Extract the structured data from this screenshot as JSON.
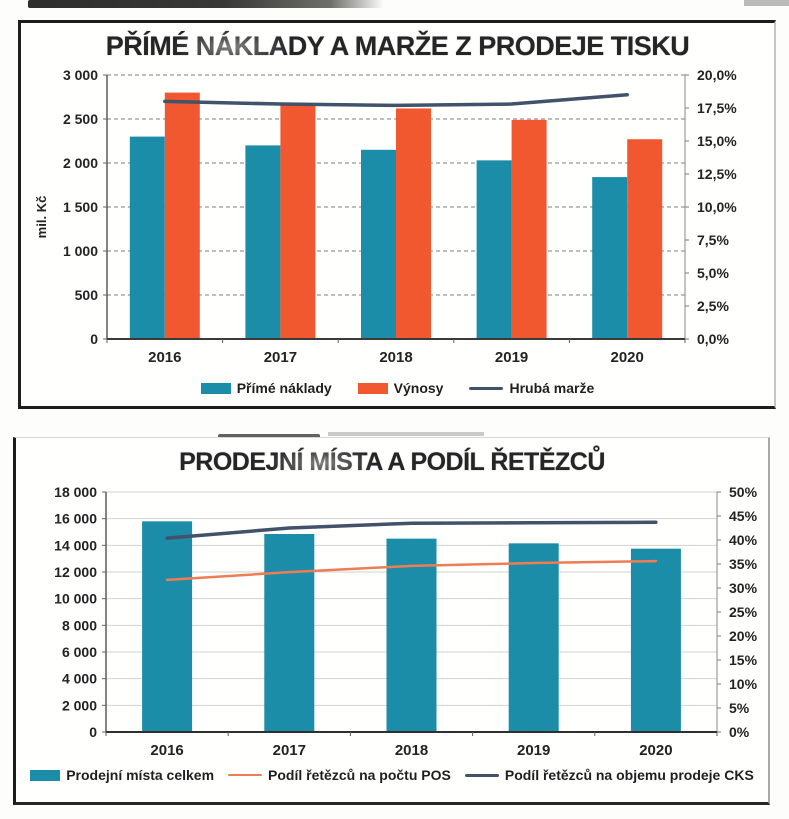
{
  "page": {
    "kind": "scanned report page with two charts"
  },
  "chart_data": [
    {
      "type": "bar+line",
      "title": "PŘÍMÉ NÁKLADY A MARŽE Z PRODEJE TISKU",
      "ylabel_left": "mil. Kč",
      "categories": [
        "2016",
        "2017",
        "2018",
        "2019",
        "2020"
      ],
      "bar_series": [
        {
          "name": "Přímé náklady",
          "color": "#1b8da8",
          "values": [
            2300,
            2200,
            2150,
            2030,
            1840
          ]
        },
        {
          "name": "Výnosy",
          "color": "#f1582f",
          "values": [
            2800,
            2680,
            2620,
            2490,
            2270
          ]
        }
      ],
      "line_series": [
        {
          "name": "Hrubá marže",
          "color": "#41526a",
          "axis": "right",
          "values_pct": [
            18.0,
            17.8,
            17.7,
            17.8,
            18.5
          ]
        }
      ],
      "left_axis": {
        "min": 0,
        "max": 3000,
        "step": 500,
        "tick_labels": [
          "3 000",
          "2 500",
          "2 000",
          "1 500",
          "1 000",
          "500",
          "0"
        ]
      },
      "right_axis": {
        "min": 0,
        "max": 20,
        "step": 2.5,
        "tick_labels": [
          "20,0%",
          "17,5%",
          "15,0%",
          "12,5%",
          "10,0%",
          "7,5%",
          "5,0%",
          "2,5%",
          "0,0%"
        ]
      },
      "legend_position": "bottom",
      "grid": "dashed-dark"
    },
    {
      "type": "bar+line",
      "title": "PRODEJNÍ MÍSTA A PODÍL ŘETĚZCŮ",
      "ylabel_left": "",
      "categories": [
        "2016",
        "2017",
        "2018",
        "2019",
        "2020"
      ],
      "bar_series": [
        {
          "name": "Prodejní místa celkem",
          "color": "#1b8da8",
          "values": [
            15800,
            14850,
            14500,
            14150,
            13750
          ]
        }
      ],
      "line_series": [
        {
          "name": "Podíl řetězců na počtu POS",
          "color": "#ed7d52",
          "axis": "right",
          "values_pct": [
            31.7,
            33.3,
            34.6,
            35.2,
            35.6
          ]
        },
        {
          "name": "Podíl řetězců na objemu prodeje CKS",
          "color": "#41526a",
          "axis": "right",
          "values_pct": [
            40.4,
            42.5,
            43.5,
            43.6,
            43.7
          ]
        }
      ],
      "left_axis": {
        "min": 0,
        "max": 18000,
        "step": 2000,
        "tick_labels": [
          "18 000",
          "16 000",
          "14 000",
          "12 000",
          "10 000",
          "8 000",
          "6 000",
          "4 000",
          "2 000",
          "0"
        ]
      },
      "right_axis": {
        "min": 0,
        "max": 50,
        "step": 5,
        "tick_labels": [
          "50%",
          "45%",
          "40%",
          "35%",
          "30%",
          "25%",
          "20%",
          "15%",
          "10%",
          "5%",
          "0%"
        ]
      },
      "legend_position": "bottom",
      "grid": "solid-light"
    }
  ]
}
